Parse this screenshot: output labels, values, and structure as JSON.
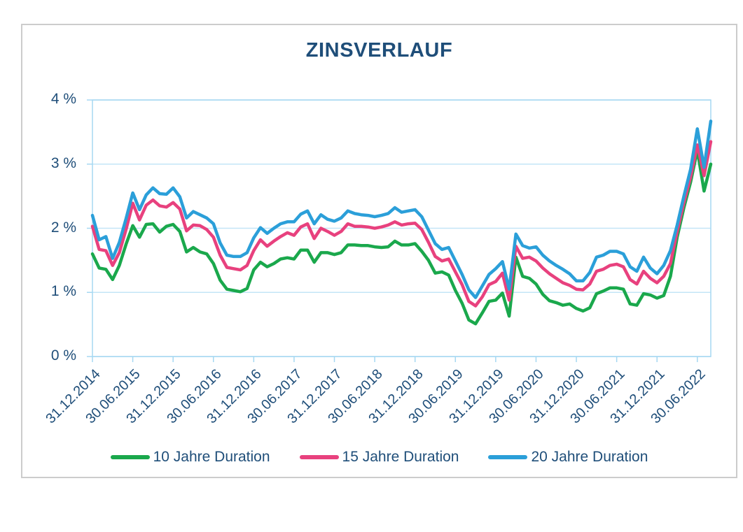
{
  "card": {
    "border_color": "#cccccc",
    "background": "#ffffff"
  },
  "chart_data": {
    "type": "line",
    "title": "ZINSVERLAUF",
    "title_color": "#1f4e79",
    "grid": true,
    "legend_position": "bottom",
    "grid_color": "#c3e5f7",
    "axis_line_color": "#a6d8f2",
    "axis_text_color": "#1f4e79",
    "y_axis": {
      "ticks": [
        "4 %",
        "3 %",
        "2 %",
        "1 %",
        "0 %"
      ],
      "tick_values": [
        4,
        3,
        2,
        1,
        0
      ],
      "min": 0,
      "max": 4,
      "unit": "%"
    },
    "x_ticks": [
      "31.12.2014",
      "30.06.2015",
      "31.12.2015",
      "30.06.2016",
      "31.12.2016",
      "30.06.2017",
      "31.12.2017",
      "30.06.2018",
      "31.12.2018",
      "30.06.2019",
      "31.12.2019",
      "30.06.2020",
      "31.12.2020",
      "30.06.2021",
      "31.12.2021",
      "30.06.2022"
    ],
    "points_per_tick": 6,
    "series": [
      {
        "name": "10 Jahre Duration",
        "color": "#1aa84c",
        "values": [
          1.6,
          1.38,
          1.36,
          1.2,
          1.42,
          1.75,
          2.04,
          1.86,
          2.06,
          2.07,
          1.94,
          2.03,
          2.06,
          1.95,
          1.63,
          1.7,
          1.63,
          1.6,
          1.45,
          1.19,
          1.05,
          1.03,
          1.01,
          1.06,
          1.35,
          1.47,
          1.4,
          1.45,
          1.52,
          1.54,
          1.52,
          1.66,
          1.66,
          1.47,
          1.62,
          1.62,
          1.59,
          1.62,
          1.74,
          1.74,
          1.73,
          1.73,
          1.71,
          1.7,
          1.71,
          1.8,
          1.74,
          1.74,
          1.76,
          1.64,
          1.5,
          1.3,
          1.32,
          1.27,
          1.03,
          0.83,
          0.57,
          0.51,
          0.68,
          0.86,
          0.88,
          0.99,
          0.63,
          1.55,
          1.25,
          1.22,
          1.13,
          0.97,
          0.87,
          0.84,
          0.8,
          0.82,
          0.75,
          0.71,
          0.76,
          0.98,
          1.02,
          1.07,
          1.07,
          1.05,
          0.82,
          0.8,
          0.98,
          0.96,
          0.91,
          0.95,
          1.25,
          1.86,
          2.32,
          2.72,
          3.22,
          2.58,
          3.0
        ]
      },
      {
        "name": "15 Jahre Duration",
        "color": "#e8417e",
        "values": [
          2.03,
          1.67,
          1.65,
          1.42,
          1.62,
          1.98,
          2.39,
          2.13,
          2.36,
          2.44,
          2.35,
          2.33,
          2.4,
          2.3,
          1.96,
          2.05,
          2.04,
          1.98,
          1.86,
          1.58,
          1.39,
          1.37,
          1.35,
          1.42,
          1.65,
          1.82,
          1.72,
          1.8,
          1.87,
          1.93,
          1.89,
          2.02,
          2.07,
          1.84,
          2.0,
          1.95,
          1.89,
          1.95,
          2.07,
          2.03,
          2.03,
          2.02,
          2.0,
          2.02,
          2.05,
          2.1,
          2.05,
          2.07,
          2.08,
          1.98,
          1.78,
          1.56,
          1.49,
          1.52,
          1.32,
          1.12,
          0.86,
          0.79,
          0.93,
          1.12,
          1.17,
          1.3,
          0.88,
          1.72,
          1.53,
          1.55,
          1.49,
          1.38,
          1.29,
          1.22,
          1.15,
          1.11,
          1.05,
          1.04,
          1.13,
          1.33,
          1.36,
          1.42,
          1.44,
          1.4,
          1.2,
          1.13,
          1.33,
          1.22,
          1.15,
          1.25,
          1.45,
          1.95,
          2.4,
          2.8,
          3.3,
          2.82,
          3.35
        ]
      },
      {
        "name": "20 Jahre Duration",
        "color": "#2b9fd9",
        "values": [
          2.2,
          1.82,
          1.87,
          1.53,
          1.78,
          2.15,
          2.55,
          2.29,
          2.52,
          2.63,
          2.54,
          2.53,
          2.63,
          2.49,
          2.16,
          2.26,
          2.21,
          2.16,
          2.07,
          1.77,
          1.58,
          1.56,
          1.56,
          1.62,
          1.85,
          2.01,
          1.92,
          2.0,
          2.07,
          2.1,
          2.1,
          2.22,
          2.27,
          2.07,
          2.21,
          2.14,
          2.11,
          2.16,
          2.27,
          2.23,
          2.21,
          2.2,
          2.18,
          2.2,
          2.23,
          2.32,
          2.25,
          2.27,
          2.29,
          2.18,
          1.97,
          1.76,
          1.67,
          1.7,
          1.49,
          1.28,
          1.04,
          0.92,
          1.1,
          1.28,
          1.37,
          1.48,
          1.05,
          1.91,
          1.73,
          1.69,
          1.71,
          1.58,
          1.49,
          1.42,
          1.36,
          1.29,
          1.18,
          1.18,
          1.31,
          1.55,
          1.58,
          1.64,
          1.64,
          1.6,
          1.4,
          1.33,
          1.55,
          1.38,
          1.29,
          1.42,
          1.65,
          2.05,
          2.5,
          2.92,
          3.55,
          2.95,
          3.67
        ]
      }
    ]
  }
}
